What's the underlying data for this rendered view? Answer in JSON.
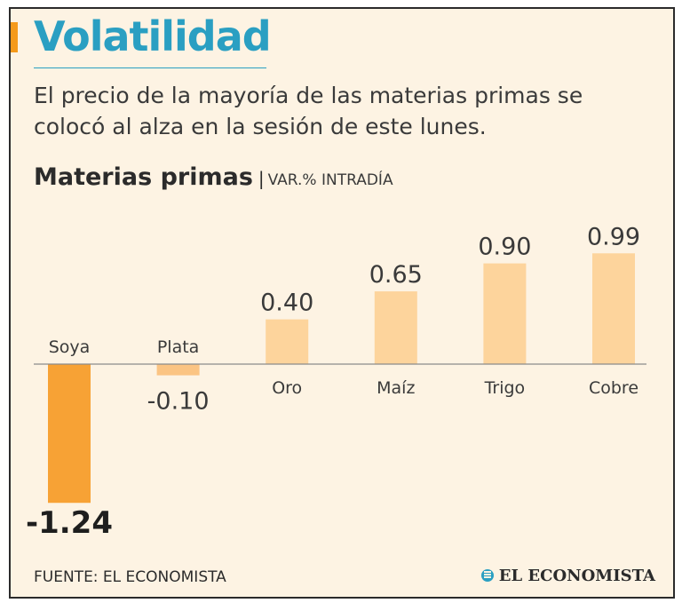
{
  "header": {
    "title": "Volatilidad",
    "subtitle": "El precio de la mayoría de las materias primas se colocó al alza en la sesión de este lunes.",
    "chart_title": "Materias primas",
    "chart_separator": "|",
    "chart_subtitle": "VAR.% INTRADÍA"
  },
  "footer": {
    "source": "FUENTE: EL ECONOMISTA",
    "brand": "EL ECONOMISTA"
  },
  "colors": {
    "accent": "#f59a1b",
    "title_blue": "#2a9fc2",
    "background": "#fdf3e3",
    "positive_bar": "#fdd49c",
    "negative_bar": "#f7a235",
    "plata_bar": "#fbc483"
  },
  "chart_data": {
    "type": "bar",
    "title": "Materias primas",
    "subtitle": "VAR.% INTRADÍA",
    "categories": [
      "Soya",
      "Plata",
      "Oro",
      "Maíz",
      "Trigo",
      "Cobre"
    ],
    "values": [
      -1.24,
      -0.1,
      0.4,
      0.65,
      0.9,
      0.99
    ],
    "labels": [
      "-1.24",
      "-0.10",
      "0.40",
      "0.65",
      "0.90",
      "0.99"
    ],
    "xlabel": "",
    "ylabel": "",
    "ylim": [
      -1.24,
      0.99
    ],
    "grid": false,
    "legend": "none"
  }
}
